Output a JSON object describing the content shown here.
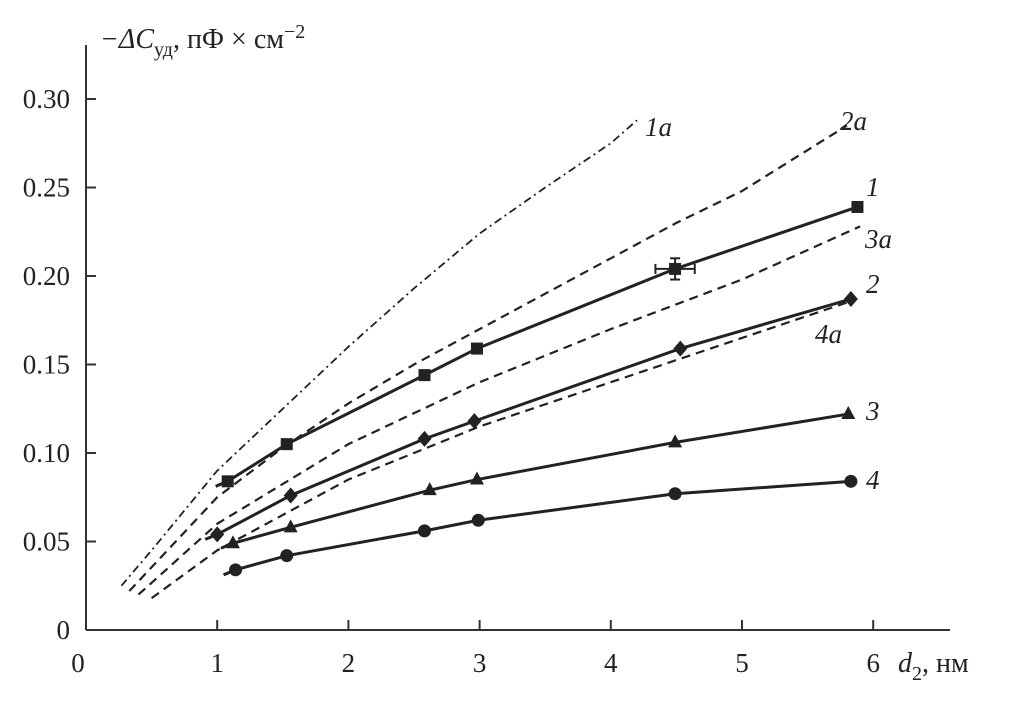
{
  "chart_data": {
    "type": "line",
    "title": "",
    "ylabel": "−ΔC_уд, пФ × см⁻²",
    "ylabel_parts": {
      "prefix": "−ΔC",
      "sub": "уд",
      "rest": ", пФ × см",
      "sup": "−2"
    },
    "xlabel": "d₂, нм",
    "xlabel_parts": {
      "main": "d",
      "sub": "2",
      "rest": ", нм"
    },
    "xlim": [
      0,
      6.6
    ],
    "ylim": [
      0,
      0.33
    ],
    "xticks": [
      "0",
      "1",
      "2",
      "3",
      "4",
      "5",
      "6"
    ],
    "yticks": [
      "0",
      "0.05",
      "0.10",
      "0.15",
      "0.20",
      "0.25",
      "0.30"
    ],
    "grid": false,
    "series": [
      {
        "name": "1",
        "marker": "square",
        "style": "solid",
        "x": [
          1.08,
          1.53,
          2.58,
          2.98,
          4.49,
          5.88
        ],
        "y": [
          0.084,
          0.105,
          0.144,
          0.159,
          0.204,
          0.239
        ],
        "error_bar": {
          "x": 4.49,
          "y": 0.204,
          "dx": 0.15,
          "dy": 0.006
        }
      },
      {
        "name": "2",
        "marker": "diamond",
        "style": "solid",
        "x": [
          1.0,
          1.56,
          2.58,
          2.96,
          4.53,
          5.83
        ],
        "y": [
          0.054,
          0.076,
          0.108,
          0.118,
          0.159,
          0.187
        ]
      },
      {
        "name": "3",
        "marker": "triangle",
        "style": "solid",
        "x": [
          1.12,
          1.56,
          2.62,
          2.98,
          4.49,
          5.81
        ],
        "y": [
          0.049,
          0.058,
          0.079,
          0.085,
          0.106,
          0.122
        ]
      },
      {
        "name": "4",
        "marker": "circle",
        "style": "solid",
        "x": [
          1.14,
          1.53,
          2.58,
          2.99,
          4.49,
          5.83
        ],
        "y": [
          0.034,
          0.042,
          0.056,
          0.062,
          0.077,
          0.084
        ]
      },
      {
        "name": "1a",
        "marker": "none",
        "style": "dashdot",
        "x": [
          0.27,
          0.5,
          1.0,
          1.5,
          2.0,
          2.5,
          3.0,
          3.5,
          4.0,
          4.2
        ],
        "y": [
          0.025,
          0.045,
          0.09,
          0.125,
          0.16,
          0.193,
          0.224,
          0.25,
          0.275,
          0.288
        ]
      },
      {
        "name": "2a",
        "marker": "none",
        "style": "dashed",
        "x": [
          0.33,
          1.0,
          1.5,
          2.0,
          2.5,
          3.0,
          3.5,
          4.0,
          4.5,
          5.0,
          5.8
        ],
        "y": [
          0.022,
          0.075,
          0.103,
          0.128,
          0.15,
          0.17,
          0.19,
          0.21,
          0.23,
          0.248,
          0.285
        ]
      },
      {
        "name": "3a",
        "marker": "none",
        "style": "dashed",
        "x": [
          0.4,
          1.0,
          2.0,
          3.0,
          4.0,
          5.0,
          5.9
        ],
        "y": [
          0.02,
          0.06,
          0.105,
          0.14,
          0.17,
          0.198,
          0.228
        ]
      },
      {
        "name": "4a",
        "marker": "none",
        "style": "dashed",
        "x": [
          0.5,
          1.0,
          2.0,
          3.0,
          4.0,
          5.0,
          5.8
        ],
        "y": [
          0.018,
          0.045,
          0.085,
          0.115,
          0.14,
          0.165,
          0.185
        ]
      }
    ],
    "curve_labels": [
      "1a",
      "2a",
      "1",
      "3a",
      "2",
      "4a",
      "3",
      "4"
    ]
  }
}
